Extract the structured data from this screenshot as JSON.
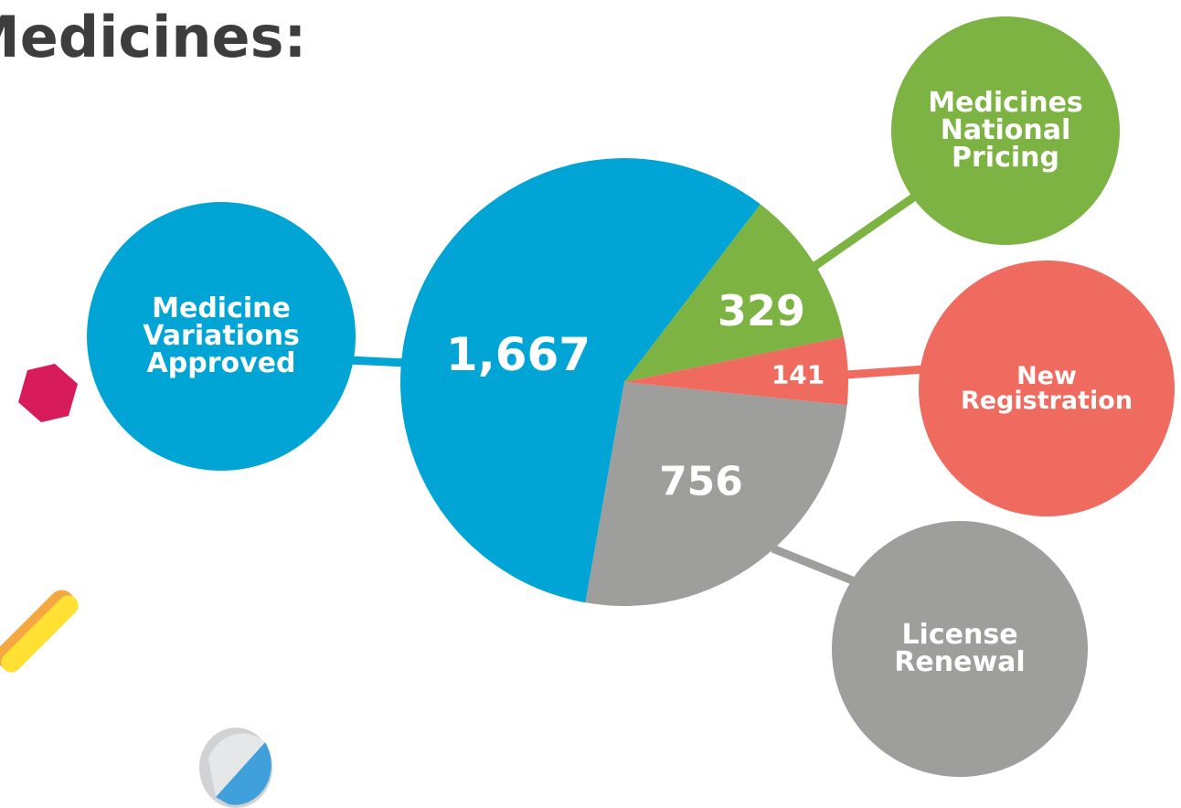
{
  "chart_data": {
    "type": "pie",
    "title": "Medicines:",
    "categories": [
      "Medicine Variations Approved",
      "Medicines National Pricing",
      "New Registration",
      "License Renewal"
    ],
    "values": [
      1667,
      329,
      141,
      756
    ],
    "value_labels": [
      "1,667",
      "329",
      "141",
      "756"
    ],
    "colors": [
      "#00a5d6",
      "#7cb342",
      "#ef6b60",
      "#9e9e9c"
    ]
  }
}
